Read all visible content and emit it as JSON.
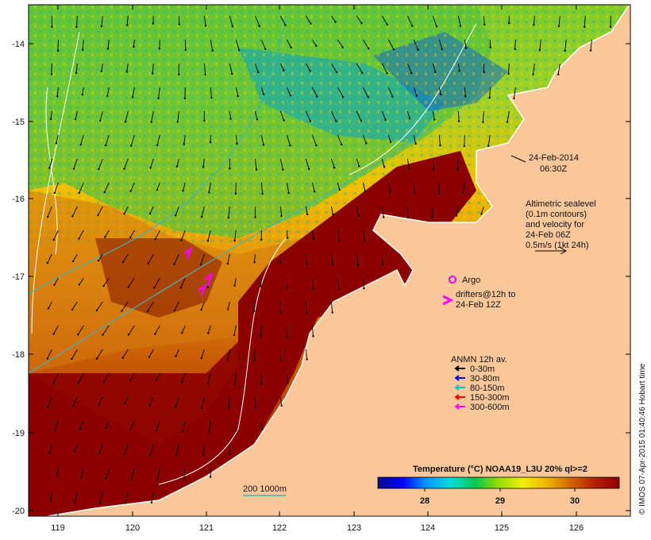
{
  "map": {
    "axes": {
      "lon_ticks": [
        "119",
        "120",
        "121",
        "122",
        "123",
        "124",
        "125",
        "126"
      ],
      "lat_ticks": [
        "-14",
        "-15",
        "-16",
        "-17",
        "-18",
        "-19",
        "-20"
      ]
    },
    "date_line1": "24-Feb-2014",
    "date_line2": "06:30Z",
    "altimetry_note": [
      "Altimetric sealevel",
      "(0.1m contours)",
      "and velocity for",
      "24-Feb 06Z",
      "0.5m/s (1kt 24h)"
    ],
    "argo_label": "Argo",
    "drifters_label": [
      "drifters@12h to",
      "24-Feb 12Z"
    ],
    "anmn_title": "ANMN 12h av.",
    "anmn_legend": [
      {
        "label": "0-30m",
        "color": "#000000"
      },
      {
        "label": "30-80m",
        "color": "#0000ff"
      },
      {
        "label": "80-150m",
        "color": "#00c8c8"
      },
      {
        "label": "150-300m",
        "color": "#ff0000"
      },
      {
        "label": "300-600m",
        "color": "#ff00ff"
      }
    ],
    "depth_contour_label": "200  1000m",
    "colorbar": {
      "title": "Temperature (°C) NOAA19_L3U 20% ql>=2",
      "ticks": [
        "28",
        "29",
        "30"
      ],
      "colors": [
        "#0a0a8c",
        "#0000ff",
        "#0096ff",
        "#00dcdc",
        "#00c850",
        "#96dc00",
        "#f0f000",
        "#f0b400",
        "#d26400",
        "#b41e00",
        "#8c0000"
      ]
    },
    "credit": "© IMOS 07-Apr-2015 01:40:46 Hobart time",
    "colors": {
      "land": "#f9c79a",
      "hot_water": "#8b0000",
      "argo": "#e800e8",
      "drifter": "#ff00ff"
    }
  }
}
